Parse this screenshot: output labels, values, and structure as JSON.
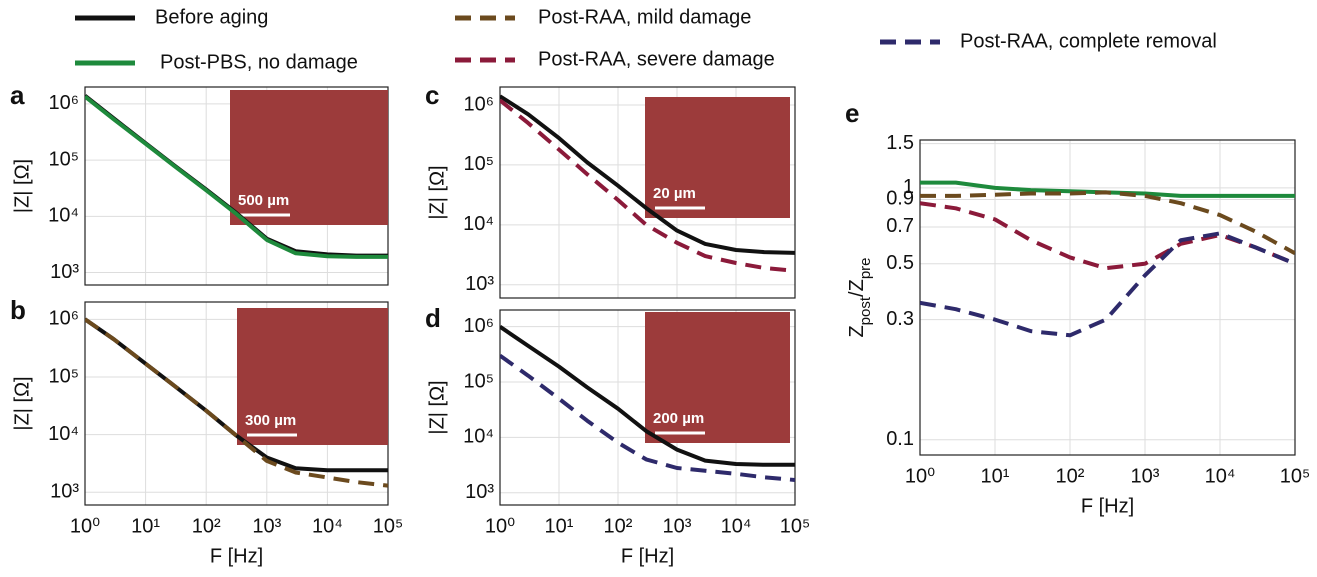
{
  "chart_data": [
    {
      "type": "line",
      "label": "a",
      "ylabel": "|Z| [Ω]",
      "inset_label": "500 µm",
      "log_x": true,
      "log_y": true,
      "x": [
        1,
        3,
        10,
        30,
        100,
        300,
        1000,
        3000,
        10000,
        30000,
        100000
      ],
      "xlim": [
        1,
        100000
      ],
      "ylim": [
        600,
        2000000
      ],
      "xgrid": [
        1,
        10,
        100,
        1000,
        10000,
        100000
      ],
      "yticks": [
        {
          "value": 1000,
          "label": "10³"
        },
        {
          "value": 10000,
          "label": "10⁴"
        },
        {
          "value": 100000,
          "label": "10⁵"
        },
        {
          "value": 1000000,
          "label": "10⁶"
        }
      ],
      "series": [
        {
          "name": "Before aging",
          "color": "#111111",
          "dash": "solid",
          "values": [
            1400000,
            550000,
            200000,
            80000,
            30000,
            12000,
            4000,
            2400,
            2100,
            2000,
            2000
          ]
        },
        {
          "color": "#1e8a3c",
          "dash": "solid",
          "values": [
            1350000,
            530000,
            195000,
            78000,
            29000,
            11500,
            3800,
            2200,
            1950,
            1900,
            1900
          ]
        }
      ]
    },
    {
      "type": "line",
      "label": "b",
      "xlabel": "F [Hz]",
      "ylabel": "|Z| [Ω]",
      "inset_label": "300 µm",
      "log_x": true,
      "log_y": true,
      "x": [
        1,
        3,
        10,
        30,
        100,
        300,
        1000,
        3000,
        10000,
        30000,
        100000
      ],
      "xlim": [
        1,
        100000
      ],
      "ylim": [
        600,
        2000000
      ],
      "xticks": [
        {
          "value": 1,
          "label": "10⁰"
        },
        {
          "value": 10,
          "label": "10¹"
        },
        {
          "value": 100,
          "label": "10²"
        },
        {
          "value": 1000,
          "label": "10³"
        },
        {
          "value": 10000,
          "label": "10⁴"
        },
        {
          "value": 100000,
          "label": "10⁵"
        }
      ],
      "yticks": [
        {
          "value": 1000,
          "label": "10³"
        },
        {
          "value": 10000,
          "label": "10⁴"
        },
        {
          "value": 100000,
          "label": "10⁵"
        },
        {
          "value": 1000000,
          "label": "10⁶"
        }
      ],
      "series": [
        {
          "color": "#111111",
          "dash": "solid",
          "values": [
            1000000,
            450000,
            170000,
            70000,
            26000,
            10000,
            4000,
            2600,
            2400,
            2400,
            2400
          ]
        },
        {
          "color": "#6b4a1e",
          "dash": "dashed",
          "values": [
            1000000,
            450000,
            170000,
            70000,
            26000,
            10000,
            3500,
            2200,
            1800,
            1500,
            1300
          ]
        }
      ]
    },
    {
      "type": "line",
      "label": "c",
      "ylabel": "|Z| [Ω]",
      "inset_label": "20 µm",
      "log_x": true,
      "log_y": true,
      "x": [
        1,
        3,
        10,
        30,
        100,
        300,
        1000,
        3000,
        10000,
        30000,
        100000
      ],
      "xlim": [
        1,
        100000
      ],
      "ylim": [
        600,
        2000000
      ],
      "xgrid": [
        1,
        10,
        100,
        1000,
        10000,
        100000
      ],
      "yticks": [
        {
          "value": 1000,
          "label": "10³"
        },
        {
          "value": 10000,
          "label": "10⁴"
        },
        {
          "value": 100000,
          "label": "10⁵"
        },
        {
          "value": 1000000,
          "label": "10⁶"
        }
      ],
      "series": [
        {
          "color": "#111111",
          "dash": "solid",
          "values": [
            1400000,
            700000,
            280000,
            110000,
            45000,
            19000,
            8000,
            4800,
            3800,
            3500,
            3400
          ]
        },
        {
          "color": "#8b1a3a",
          "dash": "dashed",
          "values": [
            1200000,
            500000,
            180000,
            70000,
            26000,
            10000,
            5000,
            3000,
            2300,
            1900,
            1700
          ]
        }
      ]
    },
    {
      "type": "line",
      "label": "d",
      "xlabel": "F [Hz]",
      "ylabel": "|Z| [Ω]",
      "inset_label": "200 µm",
      "log_x": true,
      "log_y": true,
      "x": [
        1,
        3,
        10,
        30,
        100,
        300,
        1000,
        3000,
        10000,
        30000,
        100000
      ],
      "xlim": [
        1,
        100000
      ],
      "ylim": [
        600,
        2000000
      ],
      "xticks": [
        {
          "value": 1,
          "label": "10⁰"
        },
        {
          "value": 10,
          "label": "10¹"
        },
        {
          "value": 100,
          "label": "10²"
        },
        {
          "value": 1000,
          "label": "10³"
        },
        {
          "value": 10000,
          "label": "10⁴"
        },
        {
          "value": 100000,
          "label": "10⁵"
        }
      ],
      "yticks": [
        {
          "value": 1000,
          "label": "10³"
        },
        {
          "value": 10000,
          "label": "10⁴"
        },
        {
          "value": 100000,
          "label": "10⁵"
        },
        {
          "value": 1000000,
          "label": "10⁶"
        }
      ],
      "series": [
        {
          "color": "#111111",
          "dash": "solid",
          "values": [
            1000000,
            450000,
            190000,
            80000,
            33000,
            13000,
            6000,
            3800,
            3300,
            3200,
            3200
          ]
        },
        {
          "color": "#2e2a6b",
          "dash": "dashed",
          "values": [
            300000,
            130000,
            50000,
            20000,
            8000,
            4000,
            2800,
            2500,
            2200,
            1900,
            1700
          ]
        }
      ]
    },
    {
      "type": "line",
      "label": "e",
      "xlabel": "F [Hz]",
      "ylabel": [
        "Z",
        "post",
        "/Z",
        "pre"
      ],
      "log_x": true,
      "log_y": true,
      "x": [
        1,
        3,
        10,
        30,
        100,
        300,
        1000,
        3000,
        10000,
        30000,
        100000
      ],
      "xlim": [
        1,
        100000
      ],
      "ylim": [
        0.087,
        1.55
      ],
      "xticks": [
        {
          "value": 1,
          "label": "10⁰"
        },
        {
          "value": 10,
          "label": "10¹"
        },
        {
          "value": 100,
          "label": "10²"
        },
        {
          "value": 1000,
          "label": "10³"
        },
        {
          "value": 10000,
          "label": "10⁴"
        },
        {
          "value": 100000,
          "label": "10⁵"
        }
      ],
      "yticks": [
        0.1,
        0.3,
        0.5,
        0.7,
        0.9,
        1,
        1.5
      ],
      "series": [
        {
          "name": "Post-PBS, no damage",
          "color": "#1e8a3c",
          "dash": "solid",
          "values": [
            1.05,
            1.05,
            1.0,
            0.98,
            0.97,
            0.96,
            0.95,
            0.93,
            0.93,
            0.93,
            0.93
          ]
        },
        {
          "name": "Post-RAA, mild damage",
          "color": "#6b4a1e",
          "dash": "dashed",
          "values": [
            0.93,
            0.93,
            0.94,
            0.95,
            0.95,
            0.96,
            0.93,
            0.87,
            0.78,
            0.67,
            0.55
          ]
        },
        {
          "name": "Post-RAA, severe damage",
          "color": "#8b1a3a",
          "dash": "dashed",
          "values": [
            0.87,
            0.83,
            0.75,
            0.62,
            0.53,
            0.48,
            0.5,
            0.6,
            0.65,
            0.58,
            0.5
          ]
        },
        {
          "name": "Post-RAA, complete removal",
          "color": "#2e2a6b",
          "dash": "dashed",
          "values": [
            0.35,
            0.33,
            0.3,
            0.27,
            0.26,
            0.3,
            0.45,
            0.62,
            0.66,
            0.58,
            0.5
          ]
        }
      ]
    }
  ]
}
